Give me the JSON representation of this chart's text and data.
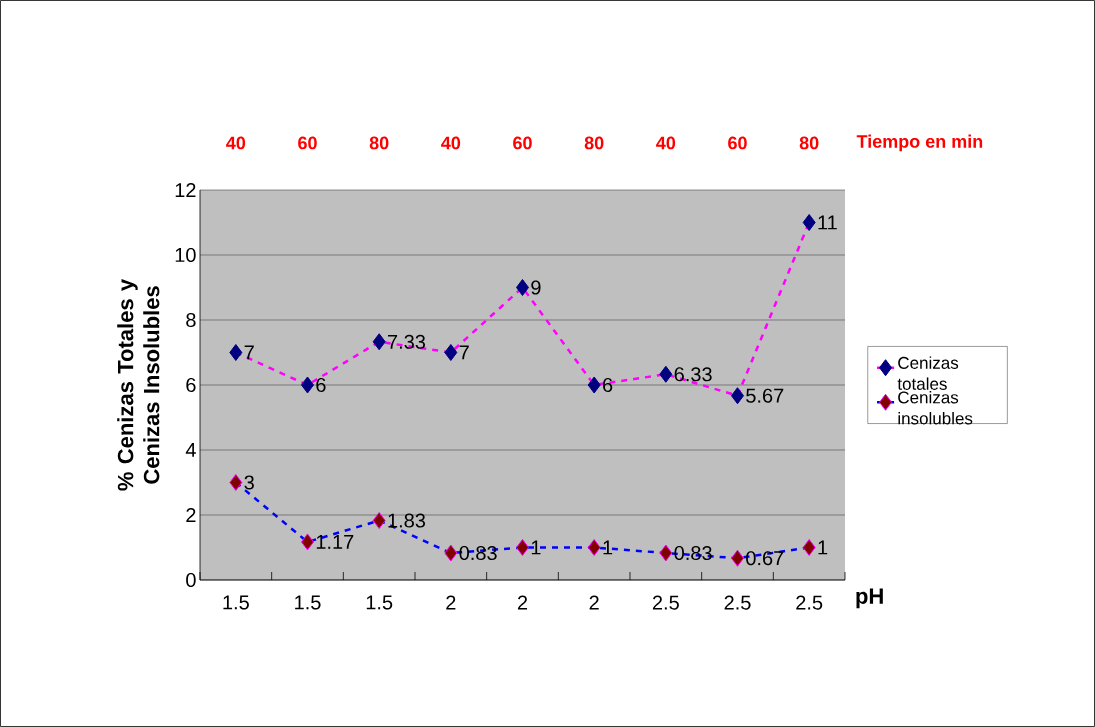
{
  "chart_data": {
    "type": "line",
    "categories": [
      "1.5",
      "1.5",
      "1.5",
      "2",
      "2",
      "2",
      "2.5",
      "2.5",
      "2.5"
    ],
    "series": [
      {
        "name": "Cenizas totales",
        "color": "#ff00ff",
        "values": [
          7,
          6,
          7.33,
          7,
          9,
          6,
          6.33,
          5.67,
          11
        ]
      },
      {
        "name": "Cenizas insolubles",
        "color": "#0000ff",
        "values": [
          3,
          1.17,
          1.83,
          0.83,
          1,
          1,
          0.83,
          0.67,
          1
        ]
      }
    ],
    "xlabel": "pH",
    "ylabel": "% Cenizas Totales y Cenizas Insolubles",
    "ylim": [
      0,
      12
    ],
    "yticks": [
      0,
      2,
      4,
      6,
      8,
      10,
      12
    ],
    "annotations": [
      "40",
      "60",
      "80",
      "40",
      "60",
      "80",
      "40",
      "60",
      "80",
      "Tiempo en min"
    ],
    "data_labels": true,
    "grid": "y",
    "legend": "right",
    "marker": "diamond",
    "line_style": "dashed"
  }
}
